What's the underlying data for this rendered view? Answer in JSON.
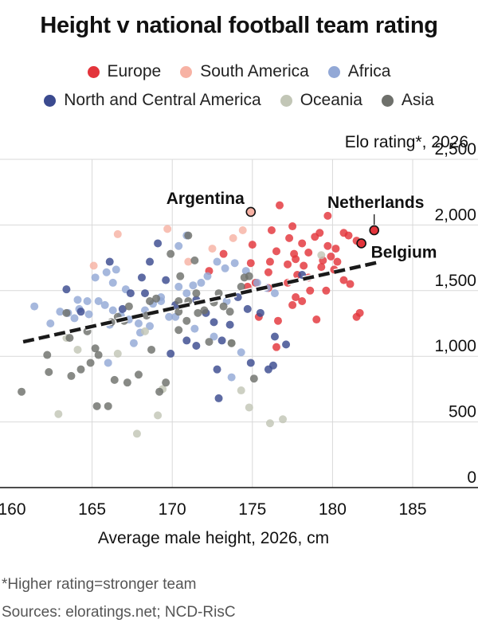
{
  "header": {
    "title": "Height v national football team rating"
  },
  "legend": {
    "row1": [
      {
        "label": "Europe",
        "color": "#e3343b"
      },
      {
        "label": "South America",
        "color": "#f7b2a4"
      },
      {
        "label": "Africa",
        "color": "#92a8d6"
      }
    ],
    "row2": [
      {
        "label": "North and Central America",
        "color": "#3b4a8f"
      },
      {
        "label": "Oceania",
        "color": "#c2c6b6"
      },
      {
        "label": "Asia",
        "color": "#6e706b"
      }
    ]
  },
  "footer": {
    "note": "*Higher rating=stronger team",
    "sources": "Sources: eloratings.net; NCD-RisC"
  },
  "chart_data": {
    "type": "scatter",
    "title": "Height v national football team rating",
    "xlabel": "Average male height, 2026, cm",
    "ylabel": "Elo rating*, 2026",
    "xlim": [
      160,
      187
    ],
    "ylim": [
      0,
      2500
    ],
    "xticks": [
      "160",
      "165",
      "170",
      "175",
      "180",
      "185"
    ],
    "yticks": [
      "0",
      "500",
      "1,000",
      "1,500",
      "2,000",
      "2,500"
    ],
    "grid": "vertical and horizontal",
    "trendline": {
      "style": "dashed",
      "x": [
        160.7,
        183
      ],
      "y": [
        1110,
        1720
      ]
    },
    "annotations": [
      {
        "label": "Argentina",
        "x": 174.9,
        "y": 2100,
        "dx": -8,
        "dy": -10,
        "anchor": "end"
      },
      {
        "label": "Netherlands",
        "x": 182.6,
        "y": 1960,
        "dx": 2,
        "dy": -28,
        "anchor": "middle"
      },
      {
        "label": "Belgium",
        "x": 181.8,
        "y": 1860,
        "dx": 12,
        "dy": 18,
        "anchor": "start"
      }
    ],
    "series": [
      {
        "name": "Europe",
        "color": "#e3343b",
        "points": [
          [
            176.7,
            2150
          ],
          [
            179.7,
            2070
          ],
          [
            176.2,
            1960
          ],
          [
            177.5,
            1990
          ],
          [
            179.2,
            1940
          ],
          [
            178.9,
            1910
          ],
          [
            180.7,
            1940
          ],
          [
            181.0,
            1920
          ],
          [
            181.5,
            1880
          ],
          [
            177.3,
            1900
          ],
          [
            178.1,
            1860
          ],
          [
            179.7,
            1840
          ],
          [
            180.2,
            1820
          ],
          [
            175.0,
            1850
          ],
          [
            176.5,
            1800
          ],
          [
            177.6,
            1780
          ],
          [
            178.5,
            1790
          ],
          [
            179.9,
            1760
          ],
          [
            177.7,
            1740
          ],
          [
            179.4,
            1730
          ],
          [
            180.3,
            1720
          ],
          [
            176.1,
            1720
          ],
          [
            177.2,
            1700
          ],
          [
            178.2,
            1690
          ],
          [
            179.3,
            1680
          ],
          [
            180.1,
            1660
          ],
          [
            176.0,
            1640
          ],
          [
            177.8,
            1620
          ],
          [
            178.5,
            1600
          ],
          [
            180.7,
            1580
          ],
          [
            181.1,
            1550
          ],
          [
            177.2,
            1560
          ],
          [
            175.2,
            1560
          ],
          [
            174.7,
            1530
          ],
          [
            176.0,
            1520
          ],
          [
            178.6,
            1500
          ],
          [
            179.6,
            1500
          ],
          [
            177.7,
            1450
          ],
          [
            178.1,
            1420
          ],
          [
            177.5,
            1390
          ],
          [
            175.4,
            1300
          ],
          [
            176.6,
            1270
          ],
          [
            179.0,
            1280
          ],
          [
            181.7,
            1330
          ],
          [
            181.5,
            1300
          ],
          [
            173.2,
            1780
          ],
          [
            174.9,
            1710
          ],
          [
            176.5,
            1070
          ],
          [
            172.3,
            1650
          ]
        ]
      },
      {
        "name": "South America",
        "color": "#f7b2a4",
        "points": [
          [
            169.7,
            1970
          ],
          [
            174.4,
            1960
          ],
          [
            166.6,
            1930
          ],
          [
            173.8,
            1900
          ],
          [
            172.5,
            1820
          ],
          [
            171.0,
            1720
          ],
          [
            165.1,
            1690
          ]
        ]
      },
      {
        "name": "Africa",
        "color": "#92a8d6",
        "points": [
          [
            161.4,
            1380
          ],
          [
            162.4,
            1250
          ],
          [
            163.0,
            1340
          ],
          [
            163.5,
            1330
          ],
          [
            164.2,
            1360
          ],
          [
            164.8,
            1320
          ],
          [
            165.4,
            1420
          ],
          [
            165.8,
            1390
          ],
          [
            166.3,
            1350
          ],
          [
            166.8,
            1310
          ],
          [
            167.3,
            1280
          ],
          [
            167.9,
            1250
          ],
          [
            168.3,
            1350
          ],
          [
            168.8,
            1400
          ],
          [
            169.3,
            1450
          ],
          [
            169.8,
            1300
          ],
          [
            170.4,
            1530
          ],
          [
            170.9,
            1480
          ],
          [
            171.3,
            1540
          ],
          [
            171.8,
            1560
          ],
          [
            172.2,
            1610
          ],
          [
            172.8,
            1720
          ],
          [
            173.3,
            1670
          ],
          [
            173.9,
            1710
          ],
          [
            174.6,
            1650
          ],
          [
            175.3,
            1560
          ],
          [
            175.9,
            1520
          ],
          [
            176.4,
            1480
          ],
          [
            173.7,
            840
          ],
          [
            174.3,
            1030
          ],
          [
            172.6,
            1150
          ],
          [
            171.4,
            1210
          ],
          [
            170.2,
            1300
          ],
          [
            168.6,
            1230
          ],
          [
            166.1,
            1240
          ],
          [
            167.6,
            1100
          ],
          [
            169.3,
            1420
          ],
          [
            170.4,
            1840
          ],
          [
            173.4,
            1420
          ],
          [
            166.3,
            1560
          ],
          [
            167.1,
            1510
          ],
          [
            165.2,
            1600
          ],
          [
            164.1,
            1430
          ],
          [
            165.9,
            1640
          ],
          [
            166.5,
            1660
          ],
          [
            163.9,
            1290
          ],
          [
            170.9,
            1920
          ],
          [
            164.7,
            1420
          ],
          [
            166.0,
            950
          ],
          [
            168.0,
            1180
          ]
        ]
      },
      {
        "name": "North and Central America",
        "color": "#3b4a8f",
        "points": [
          [
            163.4,
            1510
          ],
          [
            164.3,
            1340
          ],
          [
            166.1,
            1720
          ],
          [
            166.9,
            1360
          ],
          [
            167.4,
            1480
          ],
          [
            168.1,
            1600
          ],
          [
            168.6,
            1720
          ],
          [
            169.1,
            1860
          ],
          [
            169.6,
            1580
          ],
          [
            170.2,
            1390
          ],
          [
            171.5,
            1430
          ],
          [
            172.1,
            1330
          ],
          [
            172.6,
            1260
          ],
          [
            173.1,
            1120
          ],
          [
            173.6,
            1240
          ],
          [
            174.1,
            1450
          ],
          [
            174.7,
            1360
          ],
          [
            175.5,
            1330
          ],
          [
            176.4,
            1150
          ],
          [
            177.1,
            1090
          ],
          [
            178.1,
            1620
          ],
          [
            172.8,
            900
          ],
          [
            172.9,
            680
          ],
          [
            174.9,
            950
          ],
          [
            176.0,
            900
          ],
          [
            176.3,
            930
          ],
          [
            170.9,
            1120
          ],
          [
            171.5,
            1080
          ],
          [
            169.9,
            1020
          ],
          [
            168.3,
            1480
          ]
        ]
      },
      {
        "name": "Oceania",
        "color": "#c2c6b6",
        "points": [
          [
            162.9,
            560
          ],
          [
            164.1,
            1050
          ],
          [
            167.8,
            410
          ],
          [
            169.4,
            750
          ],
          [
            169.1,
            550
          ],
          [
            174.3,
            740
          ],
          [
            174.8,
            610
          ],
          [
            176.1,
            490
          ],
          [
            176.9,
            520
          ],
          [
            179.3,
            1770
          ],
          [
            163.4,
            1140
          ],
          [
            166.6,
            1020
          ],
          [
            168.3,
            1190
          ],
          [
            173.7,
            1100
          ]
        ]
      },
      {
        "name": "Asia",
        "color": "#6e706b",
        "points": [
          [
            160.6,
            730
          ],
          [
            162.3,
            880
          ],
          [
            163.7,
            850
          ],
          [
            164.3,
            900
          ],
          [
            164.9,
            950
          ],
          [
            165.3,
            620
          ],
          [
            166.0,
            620
          ],
          [
            166.4,
            820
          ],
          [
            167.2,
            800
          ],
          [
            167.9,
            860
          ],
          [
            168.7,
            1050
          ],
          [
            169.6,
            800
          ],
          [
            170.4,
            1200
          ],
          [
            170.9,
            1270
          ],
          [
            171.5,
            1480
          ],
          [
            172.0,
            1350
          ],
          [
            172.6,
            1410
          ],
          [
            173.2,
            1380
          ],
          [
            173.7,
            1100
          ],
          [
            174.3,
            1530
          ],
          [
            174.8,
            1610
          ],
          [
            175.1,
            830
          ],
          [
            169.2,
            730
          ],
          [
            171.0,
            1920
          ],
          [
            170.4,
            1340
          ],
          [
            169.9,
            1780
          ],
          [
            168.6,
            1420
          ],
          [
            167.3,
            1380
          ],
          [
            166.6,
            1300
          ],
          [
            165.4,
            1010
          ],
          [
            164.7,
            1190
          ],
          [
            163.6,
            1140
          ],
          [
            162.2,
            1010
          ],
          [
            171.4,
            1730
          ],
          [
            172.3,
            1110
          ],
          [
            170.5,
            1610
          ],
          [
            169.0,
            1440
          ],
          [
            168.4,
            1310
          ],
          [
            167.0,
            1270
          ],
          [
            166.2,
            1260
          ],
          [
            163.4,
            1330
          ],
          [
            165.2,
            1060
          ],
          [
            170.4,
            1420
          ],
          [
            171.0,
            1420
          ],
          [
            171.6,
            1330
          ],
          [
            172.9,
            1480
          ],
          [
            173.6,
            1340
          ],
          [
            174.5,
            1600
          ]
        ]
      },
      {
        "name": "Argentina",
        "color": "#f7b2a4",
        "points": [
          [
            174.9,
            2100
          ]
        ],
        "highlight": true
      },
      {
        "name": "Netherlands",
        "color": "#e3343b",
        "points": [
          [
            182.6,
            1960
          ]
        ],
        "highlight": true
      },
      {
        "name": "Belgium",
        "color": "#e3343b",
        "points": [
          [
            181.8,
            1860
          ]
        ],
        "highlight": true
      }
    ]
  }
}
